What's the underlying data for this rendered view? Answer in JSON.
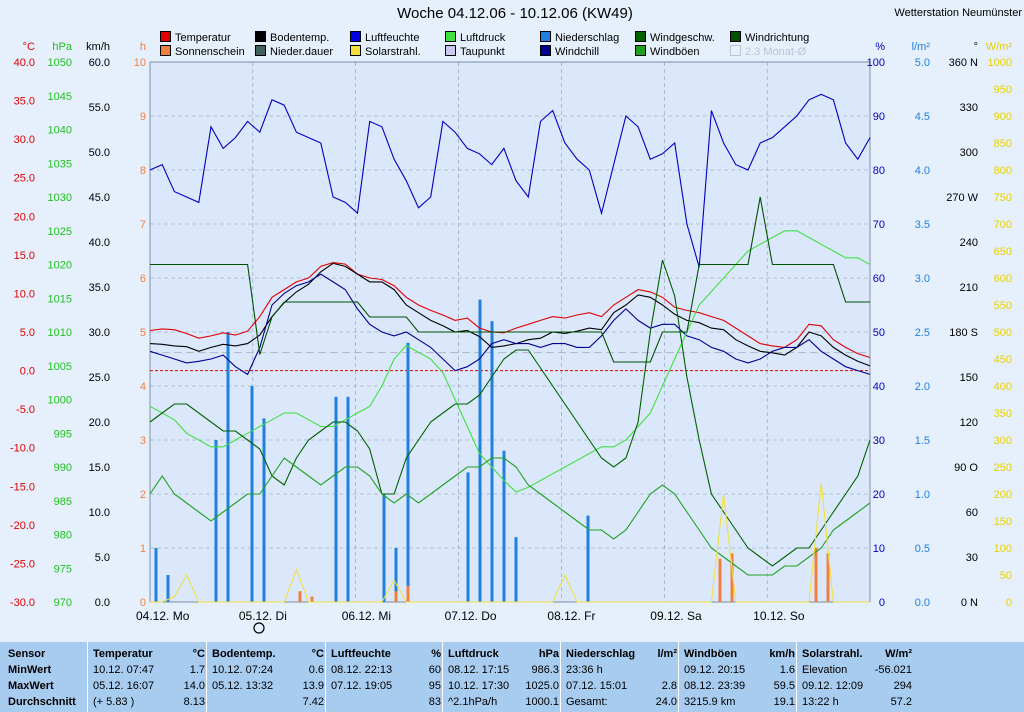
{
  "header": {
    "title": "Woche 04.12.06 - 10.12.06 (KW49)",
    "station": "Wetterstation Neumünster"
  },
  "legend": [
    {
      "label": "Temperatur",
      "color": "#e00000"
    },
    {
      "label": "Bodentemp.",
      "color": "#000000"
    },
    {
      "label": "Luftfeuchte",
      "color": "#0000e0"
    },
    {
      "label": "Luftdruck",
      "color": "#40e040"
    },
    {
      "label": "Niederschlag",
      "color": "#2080e0"
    },
    {
      "label": "Windgeschw.",
      "color": "#006000"
    },
    {
      "label": "Windrichtung",
      "color": "#005000"
    },
    {
      "label": "Sonnenschein",
      "color": "#f08040"
    },
    {
      "label": "Nieder.dauer",
      "color": "#406060"
    },
    {
      "label": "Solarstrahl.",
      "color": "#f0e040"
    },
    {
      "label": "Taupunkt",
      "color": "#c8c8f0"
    },
    {
      "label": "Windchill",
      "color": "#000090"
    },
    {
      "label": "Windböen",
      "color": "#20a020"
    },
    {
      "label": "2.3 Monat-Ø",
      "color": "#b8c4d4",
      "muted": true
    }
  ],
  "chart_data": {
    "type": "line",
    "x_labels": [
      "04.12. Mo",
      "05.12. Di",
      "06.12. Mi",
      "07.12. Do",
      "08.12. Fr",
      "09.12. Sa",
      "10.12. So"
    ],
    "axes": {
      "temperature": {
        "unit": "°C",
        "color": "#e00000",
        "ticks": [
          "40.0",
          "35.0",
          "30.0",
          "25.0",
          "20.0",
          "15.0",
          "10.0",
          "5.0",
          "0.0",
          "-5.0",
          "-10.0",
          "-15.0",
          "-20.0",
          "-25.0",
          "-30.0"
        ],
        "range": [
          -30,
          40
        ]
      },
      "pressure": {
        "unit": "hPa",
        "color": "#20c020",
        "ticks": [
          "1050",
          "1045",
          "1040",
          "1035",
          "1030",
          "1025",
          "1020",
          "1015",
          "1010",
          "1005",
          "1000",
          "995",
          "990",
          "985",
          "980",
          "975",
          "970"
        ],
        "range": [
          970,
          1050
        ]
      },
      "wind_speed": {
        "unit": "km/h",
        "color": "#000000",
        "ticks": [
          "60.0",
          "55.0",
          "50.0",
          "45.0",
          "40.0",
          "35.0",
          "30.0",
          "25.0",
          "20.0",
          "15.0",
          "10.0",
          "5.0",
          "0.0"
        ],
        "range": [
          0,
          60
        ]
      },
      "sunshine": {
        "unit": "h",
        "color": "#f08040",
        "ticks": [
          "10",
          "9",
          "8",
          "7",
          "6",
          "5",
          "4",
          "3",
          "2",
          "1",
          "0"
        ],
        "range": [
          0,
          10
        ]
      },
      "humidity": {
        "unit": "%",
        "color": "#0000c0",
        "ticks": [
          "100",
          "90",
          "80",
          "70",
          "60",
          "50",
          "40",
          "30",
          "20",
          "10",
          "0"
        ],
        "range": [
          0,
          100
        ]
      },
      "precip": {
        "unit": "l/m²",
        "color": "#2080e0",
        "ticks": [
          "5.0",
          "4.5",
          "4.0",
          "3.5",
          "3.0",
          "2.5",
          "2.0",
          "1.5",
          "1.0",
          "0.5",
          "0.0"
        ],
        "range": [
          0,
          5
        ]
      },
      "wind_dir": {
        "unit": "°",
        "color": "#000000",
        "ticks": [
          "360 N",
          "330",
          "300",
          "270 W",
          "240",
          "210",
          "180 S",
          "150",
          "120",
          "90 O",
          "60",
          "30",
          "0 N"
        ],
        "range": [
          0,
          360
        ]
      },
      "solar": {
        "unit": "W/m²",
        "color": "#e8d000",
        "ticks": [
          "1000",
          "950",
          "900",
          "850",
          "800",
          "750",
          "700",
          "650",
          "600",
          "550",
          "500",
          "450",
          "400",
          "350",
          "300",
          "250",
          "200",
          "150",
          "100",
          "50",
          "0"
        ],
        "range": [
          0,
          1000
        ]
      }
    },
    "series": [
      {
        "name": "Temperatur",
        "color": "#e00000",
        "axis": "temperature",
        "values": [
          5.2,
          5.4,
          5.3,
          4.8,
          4.2,
          4.5,
          4.9,
          4.6,
          5.1,
          7.0,
          9.5,
          10.5,
          11.5,
          12.0,
          13.5,
          14.0,
          13.8,
          12.5,
          12.0,
          11.8,
          11.0,
          9.5,
          8.5,
          7.8,
          7.2,
          6.5,
          6.8,
          5.5,
          5.0,
          4.9,
          5.5,
          6.0,
          6.5,
          7.0,
          6.8,
          7.2,
          7.5,
          7.0,
          8.5,
          9.5,
          10.5,
          10.2,
          9.5,
          8.2,
          7.8,
          7.5,
          7.0,
          6.5,
          5.5,
          4.5,
          3.5,
          3.2,
          3.0,
          4.0,
          6.0,
          5.8,
          4.0,
          3.0,
          2.2,
          1.7
        ]
      },
      {
        "name": "Bodentemp.",
        "color": "#000000",
        "axis": "temperature",
        "values": [
          3.5,
          3.4,
          3.2,
          3.1,
          2.5,
          3.0,
          3.4,
          3.2,
          3.5,
          4.6,
          7.0,
          8.8,
          10.2,
          11.2,
          12.8,
          13.9,
          13.5,
          12.5,
          11.5,
          11.5,
          10.5,
          8.5,
          7.5,
          6.5,
          5.8,
          5.0,
          5.2,
          4.4,
          3.0,
          3.2,
          3.5,
          4.0,
          4.2,
          5.0,
          4.8,
          5.1,
          5.5,
          5.3,
          7.5,
          8.5,
          9.8,
          9.5,
          8.5,
          7.3,
          6.5,
          6.2,
          5.5,
          5.3,
          4.0,
          3.2,
          2.5,
          2.3,
          2.0,
          3.0,
          5.0,
          4.5,
          3.0,
          2.0,
          1.2,
          0.6
        ]
      },
      {
        "name": "Taupunkt",
        "color": "#000090",
        "axis": "temperature",
        "values": [
          2.5,
          2.0,
          1.5,
          1.0,
          1.2,
          1.5,
          2.0,
          0.5,
          -0.5,
          3.0,
          8.5,
          10.0,
          11.0,
          11.5,
          12.5,
          11.5,
          10.5,
          8.0,
          6.0,
          5.0,
          4.5,
          5.0,
          4.0,
          3.0,
          1.5,
          0.0,
          0.5,
          1.5,
          3.5,
          4.0,
          3.5,
          3.5,
          3.0,
          3.5,
          3.5,
          3.0,
          3.0,
          4.5,
          6.5,
          8.0,
          6.5,
          5.5,
          6.0,
          6.0,
          4.5,
          4.0,
          3.0,
          2.5,
          1.5,
          1.0,
          1.5,
          2.5,
          3.0,
          3.0,
          4.0,
          2.5,
          1.5,
          0.5,
          0.0,
          -0.5
        ]
      },
      {
        "name": "Luftfeuchte",
        "color": "#0000c0",
        "axis": "humidity",
        "values": [
          80,
          81,
          76,
          75,
          74,
          88,
          84,
          86,
          89,
          87,
          93,
          92,
          87,
          86,
          85,
          75,
          74,
          72,
          89,
          88,
          82,
          78,
          73,
          75,
          89,
          87,
          84,
          83,
          81,
          84,
          78,
          75,
          89,
          91,
          85,
          82,
          80,
          72,
          81,
          90,
          88,
          82,
          83,
          85,
          70,
          62,
          91,
          85,
          81,
          80,
          85,
          86,
          88,
          90,
          93,
          94,
          93,
          85,
          82,
          86
        ]
      },
      {
        "name": "Luftdruck",
        "color": "#40e040",
        "axis": "pressure",
        "values": [
          999,
          998,
          997,
          995,
          994,
          993,
          993,
          994,
          995,
          996,
          997,
          998,
          998,
          997,
          996,
          996,
          997,
          998,
          999,
          1002,
          1006,
          1008,
          1007,
          1006,
          1004,
          1000,
          996,
          992,
          990,
          988,
          986.3,
          987,
          988,
          989,
          990,
          991,
          992,
          993,
          993,
          994,
          996,
          998,
          1002,
          1006,
          1010,
          1014,
          1016,
          1018,
          1020,
          1022,
          1023,
          1024,
          1025,
          1025,
          1024,
          1023,
          1022,
          1021,
          1021,
          1020
        ]
      },
      {
        "name": "Windgeschw.",
        "color": "#006000",
        "axis": "wind_speed",
        "values": [
          20,
          21,
          22,
          22,
          21,
          20,
          19,
          19,
          18,
          17,
          14,
          13,
          16,
          18,
          19,
          20,
          20,
          19,
          17,
          12,
          12,
          16,
          18,
          20,
          21,
          22,
          22,
          23,
          25,
          27,
          28,
          28,
          26,
          24,
          22,
          20,
          18,
          16,
          15,
          16,
          20,
          30,
          38,
          34,
          25,
          18,
          12,
          10,
          8,
          6,
          5,
          4,
          5,
          6,
          6,
          8,
          10,
          12,
          14,
          18
        ]
      },
      {
        "name": "Windböen",
        "color": "#20a020",
        "axis": "wind_speed",
        "values": [
          12,
          14,
          12,
          11,
          10,
          9,
          10,
          11,
          12,
          12,
          14,
          16,
          15,
          14,
          13,
          14,
          15,
          15,
          14,
          12,
          11,
          12,
          11,
          12,
          13,
          14,
          15,
          15,
          16,
          16,
          15,
          13,
          12,
          11,
          10,
          9,
          8,
          8,
          7,
          8,
          10,
          12,
          13,
          12,
          10,
          8,
          6,
          5,
          4,
          3,
          3,
          3,
          4,
          4,
          5,
          6,
          8,
          9,
          10,
          11
        ]
      },
      {
        "name": "Windrichtung",
        "color": "#005000",
        "axis": "wind_dir",
        "values": [
          225,
          225,
          225,
          225,
          225,
          225,
          225,
          225,
          225,
          165,
          190,
          200,
          200,
          200,
          200,
          200,
          200,
          200,
          190,
          190,
          190,
          190,
          180,
          180,
          180,
          180,
          180,
          180,
          180,
          180,
          180,
          180,
          180,
          180,
          180,
          180,
          180,
          180,
          160,
          160,
          160,
          160,
          180,
          180,
          180,
          225,
          225,
          225,
          225,
          225,
          270,
          225,
          225,
          225,
          225,
          225,
          225,
          200,
          200,
          200
        ]
      },
      {
        "name": "Solarstrahl.",
        "color": "#f0e040",
        "axis": "solar",
        "values": [
          0,
          0,
          10,
          50,
          0,
          0,
          0,
          0,
          0,
          0,
          0,
          0,
          60,
          0,
          0,
          0,
          0,
          0,
          0,
          0,
          40,
          0,
          0,
          0,
          0,
          0,
          0,
          0,
          0,
          0,
          0,
          0,
          0,
          0,
          50,
          0,
          0,
          0,
          0,
          0,
          0,
          0,
          0,
          0,
          0,
          0,
          0,
          200,
          0,
          0,
          0,
          0,
          0,
          0,
          0,
          220,
          0,
          0,
          0,
          0
        ]
      },
      {
        "name": "Niederschlag",
        "color": "#2080e0",
        "axis": "precip",
        "bars": [
          0.5,
          0.25,
          0,
          0,
          0,
          1.5,
          2.5,
          0,
          2.0,
          1.7,
          0,
          0,
          0,
          0,
          0,
          1.9,
          1.9,
          0,
          0,
          1.0,
          0.5,
          2.4,
          0,
          0,
          0,
          0,
          1.2,
          2.8,
          2.6,
          1.4,
          0.6,
          0,
          0,
          0,
          0,
          0,
          0.8,
          0,
          0,
          0,
          0,
          0,
          0,
          0,
          0,
          0,
          0,
          0,
          0,
          0,
          0,
          0,
          0,
          0,
          0,
          0,
          0,
          0,
          0,
          0
        ]
      },
      {
        "name": "Sonnenschein",
        "color": "#f08040",
        "axis": "sunshine",
        "bars": [
          0,
          0,
          0,
          0,
          0,
          0,
          0,
          0,
          0,
          0,
          0,
          0,
          0.2,
          0.1,
          0,
          0,
          0,
          0,
          0,
          0,
          0.2,
          0.3,
          0,
          0,
          0,
          0,
          0,
          0,
          0,
          0,
          0,
          0,
          0,
          0,
          0,
          0,
          0,
          0,
          0,
          0,
          0,
          0,
          0,
          0,
          0,
          0,
          0,
          0.8,
          0.9,
          0,
          0,
          0,
          0,
          0,
          0,
          1.0,
          0.9,
          0,
          0,
          0
        ]
      }
    ]
  },
  "stats": {
    "columns": [
      {
        "header": "Sensor",
        "unit": "",
        "rows": [
          "MinWert",
          "MaxWert",
          "Durchschnitt"
        ]
      },
      {
        "header": "Temperatur",
        "unit": "°C",
        "rows": [
          [
            "10.12.  07:47",
            "1.7"
          ],
          [
            "05.12.  16:07",
            "14.0"
          ],
          [
            "(+ 5.83 )",
            "8.13"
          ]
        ]
      },
      {
        "header": "Bodentemp.",
        "unit": "°C",
        "rows": [
          [
            "10.12.  07:24",
            "0.6"
          ],
          [
            "05.12.  13:32",
            "13.9"
          ],
          [
            "",
            "7.42"
          ]
        ]
      },
      {
        "header": "Luftfeuchte",
        "unit": "%",
        "rows": [
          [
            "08.12.  22:13",
            "60"
          ],
          [
            "07.12.  19:05",
            "95"
          ],
          [
            "",
            "83"
          ]
        ]
      },
      {
        "header": "Luftdruck",
        "unit": "hPa",
        "rows": [
          [
            "08.12.  17:15",
            "986.3"
          ],
          [
            "10.12.  17:30",
            "1025.0"
          ],
          [
            "^2.1hPa/h",
            "1000.1"
          ]
        ]
      },
      {
        "header": "Niederschlag",
        "unit": "l/m²",
        "rows": [
          [
            "23:36 h",
            ""
          ],
          [
            "07.12.  15:01",
            "2.8"
          ],
          [
            "Gesamt:",
            "24.0"
          ]
        ]
      },
      {
        "header": "Windböen",
        "unit": "km/h",
        "rows": [
          [
            "09.12.  20:15",
            "1.6"
          ],
          [
            "08.12.  23:39",
            "59.5"
          ],
          [
            "3215.9 km",
            "19.1"
          ]
        ]
      },
      {
        "header": "Solarstrahl.",
        "unit": "W/m²",
        "rows": [
          [
            "Elevation",
            "-56.021"
          ],
          [
            "09.12.  12:09",
            "294"
          ],
          [
            "13:22 h",
            "57.2"
          ]
        ]
      }
    ]
  }
}
